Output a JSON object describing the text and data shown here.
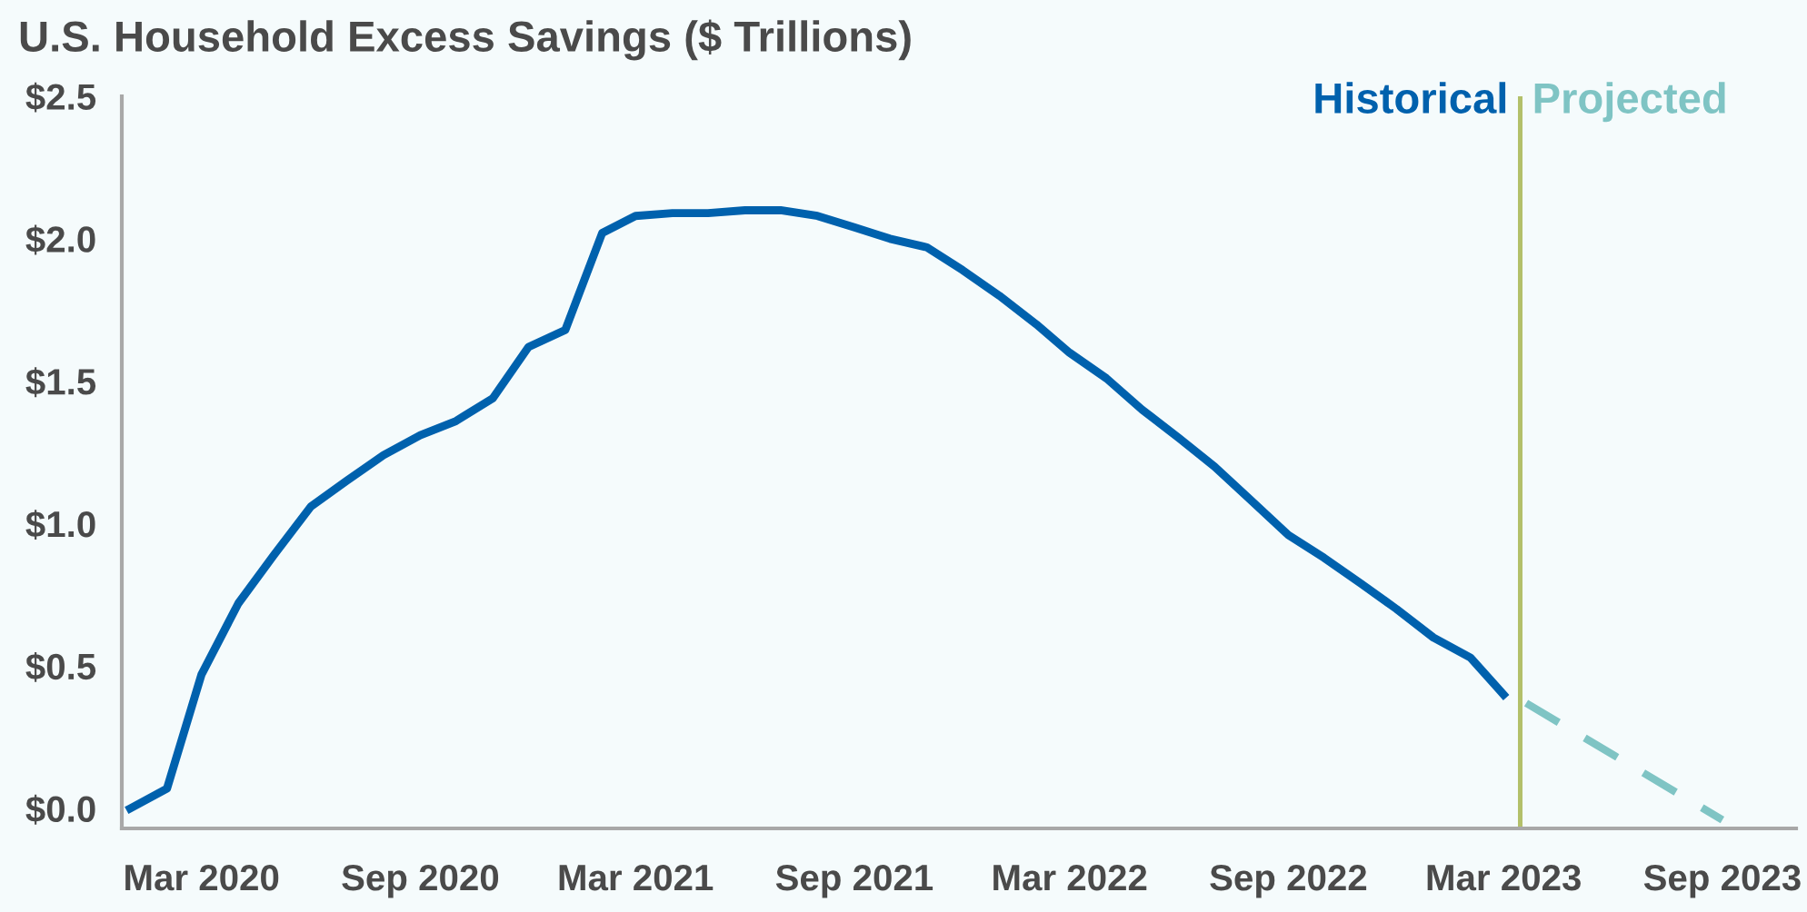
{
  "chart_data": {
    "type": "line",
    "title": "U.S. Household Excess Savings ($ Trillions)",
    "series": [
      {
        "name": "Historical",
        "color": "#0061ad",
        "line_style": "solid",
        "x": [
          "2020-01",
          "2020-02",
          "2020-03",
          "2020-04",
          "2020-05",
          "2020-06",
          "2020-07",
          "2020-08",
          "2020-09",
          "2020-10",
          "2020-11",
          "2020-12",
          "2021-01",
          "2021-02",
          "2021-03",
          "2021-04",
          "2021-05",
          "2021-06",
          "2021-07",
          "2021-08",
          "2021-09",
          "2021-10",
          "2021-11",
          "2021-12",
          "2022-01",
          "2022-02",
          "2022-03",
          "2022-04",
          "2022-05",
          "2022-06",
          "2022-07",
          "2022-08",
          "2022-09",
          "2022-10",
          "2022-11",
          "2022-12",
          "2023-01",
          "2023-02",
          "2023-03"
        ],
        "values": [
          0.0,
          0.07,
          0.47,
          0.72,
          0.89,
          1.06,
          1.15,
          1.24,
          1.31,
          1.36,
          1.44,
          1.62,
          1.68,
          2.02,
          2.08,
          2.09,
          2.09,
          2.1,
          2.1,
          2.08,
          2.04,
          2.0,
          1.97,
          1.89,
          1.8,
          1.7,
          1.6,
          1.51,
          1.4,
          1.3,
          1.2,
          1.08,
          0.96,
          0.88,
          0.79,
          0.7,
          0.6,
          0.53,
          0.4
        ]
      },
      {
        "name": "Projected",
        "color": "#7fc4c4",
        "line_style": "dashed",
        "x": [
          "2023-03-20",
          "2023-09"
        ],
        "values": [
          0.37,
          -0.04
        ]
      }
    ],
    "ref_lines": [
      {
        "axis": "x",
        "value": "2023-03-15",
        "color": "#b3c06a"
      }
    ],
    "xlim": [
      "2019-12-25",
      "2023-11-02"
    ],
    "xticks": [
      {
        "value": "2020-03",
        "label": "Mar 2020"
      },
      {
        "value": "2020-09",
        "label": "Sep 2020"
      },
      {
        "value": "2021-03",
        "label": "Mar 2021"
      },
      {
        "value": "2021-09",
        "label": "Sep 2021"
      },
      {
        "value": "2022-03",
        "label": "Mar 2022"
      },
      {
        "value": "2022-09",
        "label": "Sep 2022"
      },
      {
        "value": "2023-03",
        "label": "Mar 2023"
      },
      {
        "value": "2023-09",
        "label": "Sep 2023"
      }
    ],
    "ylim": [
      -0.07,
      2.5
    ],
    "yticks": [
      {
        "value": 0.0,
        "label": "$0.0"
      },
      {
        "value": 0.5,
        "label": "$0.5"
      },
      {
        "value": 1.0,
        "label": "$1.0"
      },
      {
        "value": 1.5,
        "label": "$1.5"
      },
      {
        "value": 2.0,
        "label": "$2.0"
      },
      {
        "value": 2.5,
        "label": "$2.5"
      }
    ],
    "grid": false,
    "legend": "top right"
  }
}
